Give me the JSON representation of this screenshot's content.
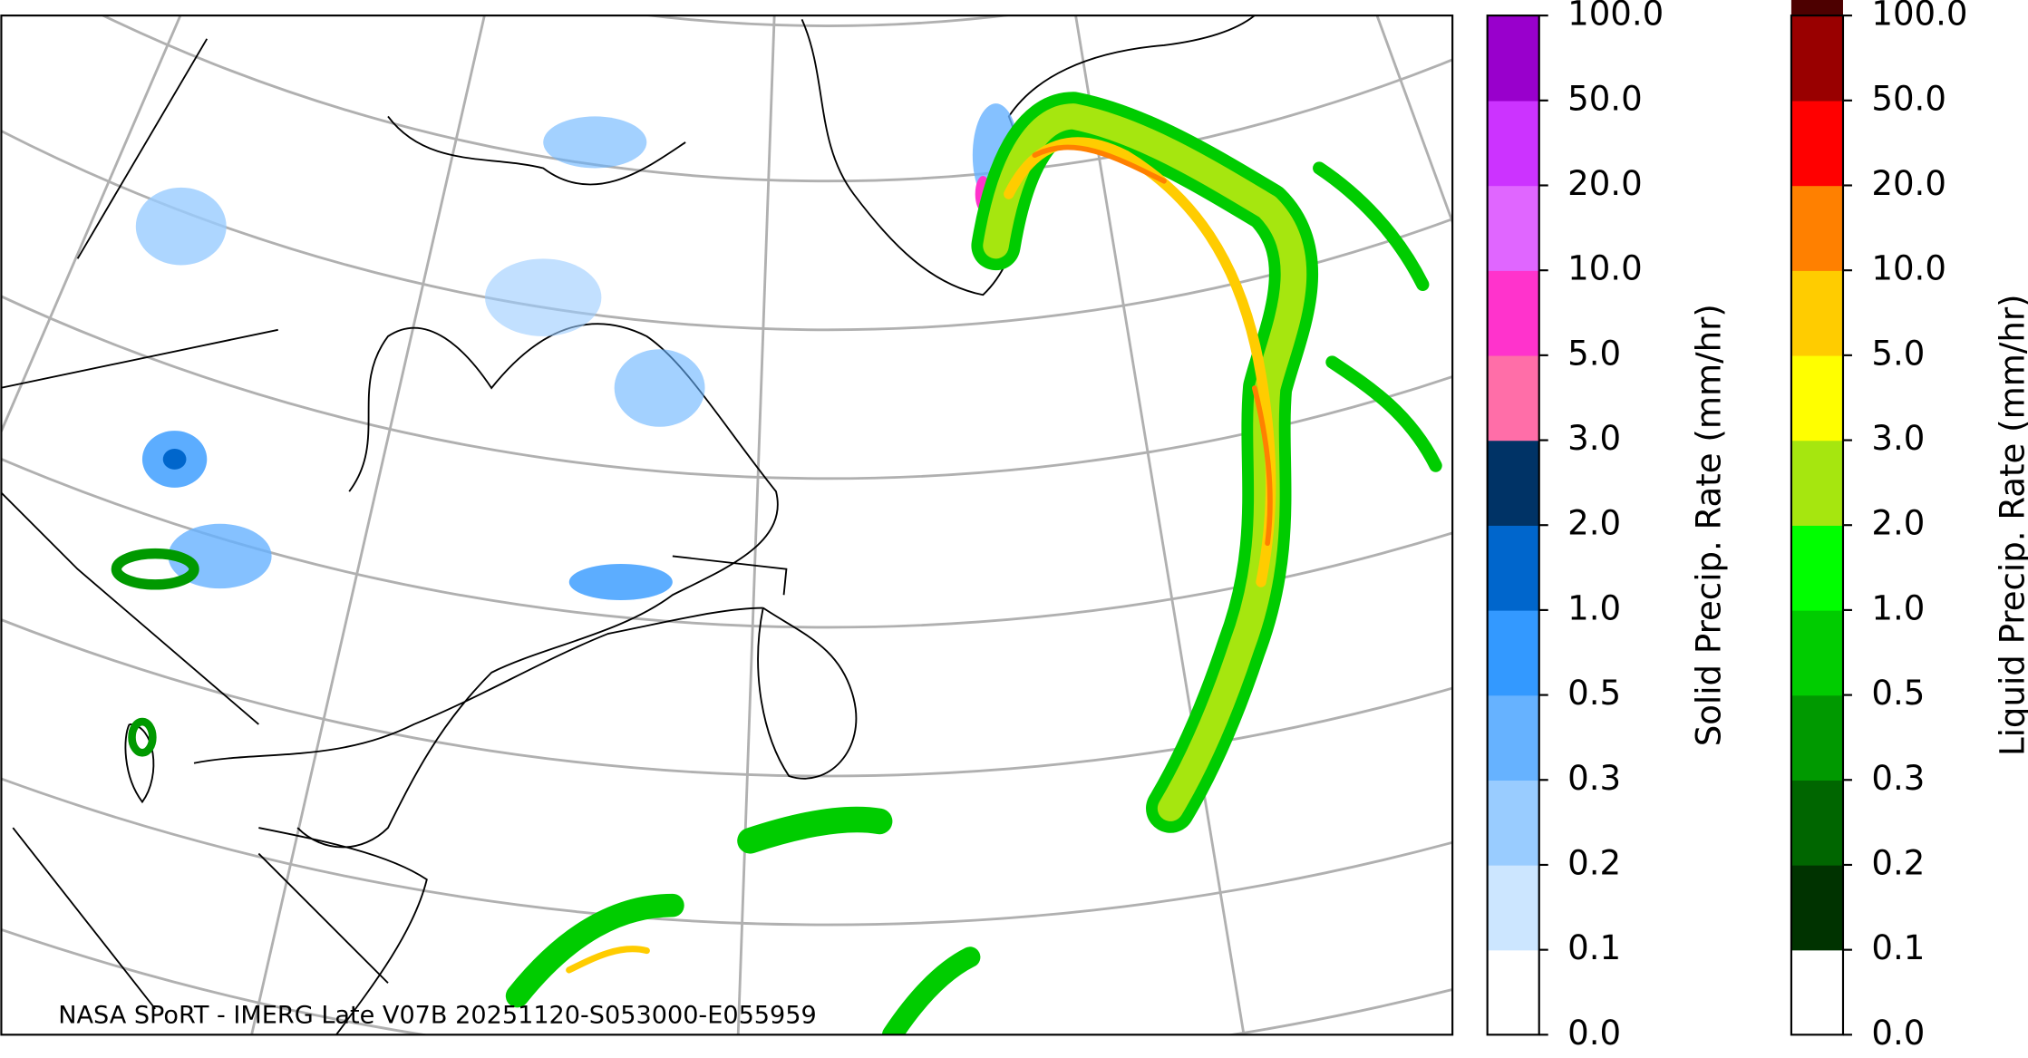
{
  "credit": "NASA SPoRT - IMERG Late V07B 20251120-S053000-E055959",
  "colorbars": [
    {
      "label": "Solid Precip. Rate (mm/hr)",
      "ticks": [
        {
          "value": 0,
          "label": "0.0"
        },
        {
          "value": 0.1,
          "label": "0.1"
        },
        {
          "value": 0.2,
          "label": "0.2"
        },
        {
          "value": 0.3,
          "label": "0.3"
        },
        {
          "value": 0.5,
          "label": "0.5"
        },
        {
          "value": 1,
          "label": "1.0"
        },
        {
          "value": 2,
          "label": "2.0"
        },
        {
          "value": 3,
          "label": "3.0"
        },
        {
          "value": 5,
          "label": "5.0"
        },
        {
          "value": 10,
          "label": "10.0"
        },
        {
          "value": 20,
          "label": "20.0"
        },
        {
          "value": 50,
          "label": "50.0"
        },
        {
          "value": 100,
          "label": "100.0"
        }
      ],
      "colors": [
        "#ffffff",
        "#cce6ff",
        "#99ccff",
        "#66b2ff",
        "#3399ff",
        "#0066cc",
        "#003366",
        "#ff6ea8",
        "#ff33cc",
        "#e066ff",
        "#cc33ff",
        "#9900cc"
      ]
    },
    {
      "label": "Liquid Precip. Rate (mm/hr)",
      "ticks": [
        {
          "value": 0,
          "label": "0.0"
        },
        {
          "value": 0.1,
          "label": "0.1"
        },
        {
          "value": 0.2,
          "label": "0.2"
        },
        {
          "value": 0.3,
          "label": "0.3"
        },
        {
          "value": 0.5,
          "label": "0.5"
        },
        {
          "value": 1,
          "label": "1.0"
        },
        {
          "value": 2,
          "label": "2.0"
        },
        {
          "value": 3,
          "label": "3.0"
        },
        {
          "value": 5,
          "label": "5.0"
        },
        {
          "value": 10,
          "label": "10.0"
        },
        {
          "value": 20,
          "label": "20.0"
        },
        {
          "value": 50,
          "label": "50.0"
        },
        {
          "value": 100,
          "label": "100.0"
        }
      ],
      "colors": [
        "#ffffff",
        "#003300",
        "#006600",
        "#009900",
        "#00cc00",
        "#00ff00",
        "#a6e60f",
        "#ffff00",
        "#ffcc00",
        "#ff8000",
        "#ff0000",
        "#990000",
        "#4d0000"
      ]
    }
  ]
}
